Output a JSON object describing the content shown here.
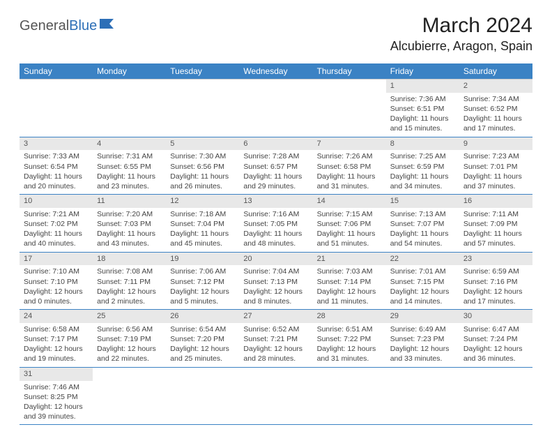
{
  "logo": {
    "text1": "General",
    "text2": "Blue"
  },
  "title": "March 2024",
  "location": "Alcubierre, Aragon, Spain",
  "colors": {
    "header_bg": "#3b82c4",
    "header_text": "#ffffff",
    "daynum_bg": "#e8e8e8",
    "rule": "#3b82c4",
    "logo_accent": "#2d6fb7"
  },
  "day_headers": [
    "Sunday",
    "Monday",
    "Tuesday",
    "Wednesday",
    "Thursday",
    "Friday",
    "Saturday"
  ],
  "weeks": [
    [
      null,
      null,
      null,
      null,
      null,
      {
        "n": "1",
        "sunrise": "7:36 AM",
        "sunset": "6:51 PM",
        "day_h": "11",
        "day_m": "15"
      },
      {
        "n": "2",
        "sunrise": "7:34 AM",
        "sunset": "6:52 PM",
        "day_h": "11",
        "day_m": "17"
      }
    ],
    [
      {
        "n": "3",
        "sunrise": "7:33 AM",
        "sunset": "6:54 PM",
        "day_h": "11",
        "day_m": "20"
      },
      {
        "n": "4",
        "sunrise": "7:31 AM",
        "sunset": "6:55 PM",
        "day_h": "11",
        "day_m": "23"
      },
      {
        "n": "5",
        "sunrise": "7:30 AM",
        "sunset": "6:56 PM",
        "day_h": "11",
        "day_m": "26"
      },
      {
        "n": "6",
        "sunrise": "7:28 AM",
        "sunset": "6:57 PM",
        "day_h": "11",
        "day_m": "29"
      },
      {
        "n": "7",
        "sunrise": "7:26 AM",
        "sunset": "6:58 PM",
        "day_h": "11",
        "day_m": "31"
      },
      {
        "n": "8",
        "sunrise": "7:25 AM",
        "sunset": "6:59 PM",
        "day_h": "11",
        "day_m": "34"
      },
      {
        "n": "9",
        "sunrise": "7:23 AM",
        "sunset": "7:01 PM",
        "day_h": "11",
        "day_m": "37"
      }
    ],
    [
      {
        "n": "10",
        "sunrise": "7:21 AM",
        "sunset": "7:02 PM",
        "day_h": "11",
        "day_m": "40"
      },
      {
        "n": "11",
        "sunrise": "7:20 AM",
        "sunset": "7:03 PM",
        "day_h": "11",
        "day_m": "43"
      },
      {
        "n": "12",
        "sunrise": "7:18 AM",
        "sunset": "7:04 PM",
        "day_h": "11",
        "day_m": "45"
      },
      {
        "n": "13",
        "sunrise": "7:16 AM",
        "sunset": "7:05 PM",
        "day_h": "11",
        "day_m": "48"
      },
      {
        "n": "14",
        "sunrise": "7:15 AM",
        "sunset": "7:06 PM",
        "day_h": "11",
        "day_m": "51"
      },
      {
        "n": "15",
        "sunrise": "7:13 AM",
        "sunset": "7:07 PM",
        "day_h": "11",
        "day_m": "54"
      },
      {
        "n": "16",
        "sunrise": "7:11 AM",
        "sunset": "7:09 PM",
        "day_h": "11",
        "day_m": "57"
      }
    ],
    [
      {
        "n": "17",
        "sunrise": "7:10 AM",
        "sunset": "7:10 PM",
        "day_h": "12",
        "day_m": "0"
      },
      {
        "n": "18",
        "sunrise": "7:08 AM",
        "sunset": "7:11 PM",
        "day_h": "12",
        "day_m": "2"
      },
      {
        "n": "19",
        "sunrise": "7:06 AM",
        "sunset": "7:12 PM",
        "day_h": "12",
        "day_m": "5"
      },
      {
        "n": "20",
        "sunrise": "7:04 AM",
        "sunset": "7:13 PM",
        "day_h": "12",
        "day_m": "8"
      },
      {
        "n": "21",
        "sunrise": "7:03 AM",
        "sunset": "7:14 PM",
        "day_h": "12",
        "day_m": "11"
      },
      {
        "n": "22",
        "sunrise": "7:01 AM",
        "sunset": "7:15 PM",
        "day_h": "12",
        "day_m": "14"
      },
      {
        "n": "23",
        "sunrise": "6:59 AM",
        "sunset": "7:16 PM",
        "day_h": "12",
        "day_m": "17"
      }
    ],
    [
      {
        "n": "24",
        "sunrise": "6:58 AM",
        "sunset": "7:17 PM",
        "day_h": "12",
        "day_m": "19"
      },
      {
        "n": "25",
        "sunrise": "6:56 AM",
        "sunset": "7:19 PM",
        "day_h": "12",
        "day_m": "22"
      },
      {
        "n": "26",
        "sunrise": "6:54 AM",
        "sunset": "7:20 PM",
        "day_h": "12",
        "day_m": "25"
      },
      {
        "n": "27",
        "sunrise": "6:52 AM",
        "sunset": "7:21 PM",
        "day_h": "12",
        "day_m": "28"
      },
      {
        "n": "28",
        "sunrise": "6:51 AM",
        "sunset": "7:22 PM",
        "day_h": "12",
        "day_m": "31"
      },
      {
        "n": "29",
        "sunrise": "6:49 AM",
        "sunset": "7:23 PM",
        "day_h": "12",
        "day_m": "33"
      },
      {
        "n": "30",
        "sunrise": "6:47 AM",
        "sunset": "7:24 PM",
        "day_h": "12",
        "day_m": "36"
      }
    ],
    [
      {
        "n": "31",
        "sunrise": "7:46 AM",
        "sunset": "8:25 PM",
        "day_h": "12",
        "day_m": "39"
      },
      null,
      null,
      null,
      null,
      null,
      null
    ]
  ],
  "labels": {
    "sunrise": "Sunrise:",
    "sunset": "Sunset:",
    "daylight_prefix": "Daylight:",
    "hours_word": "hours",
    "and_word": "and",
    "minutes_word": "minutes."
  }
}
